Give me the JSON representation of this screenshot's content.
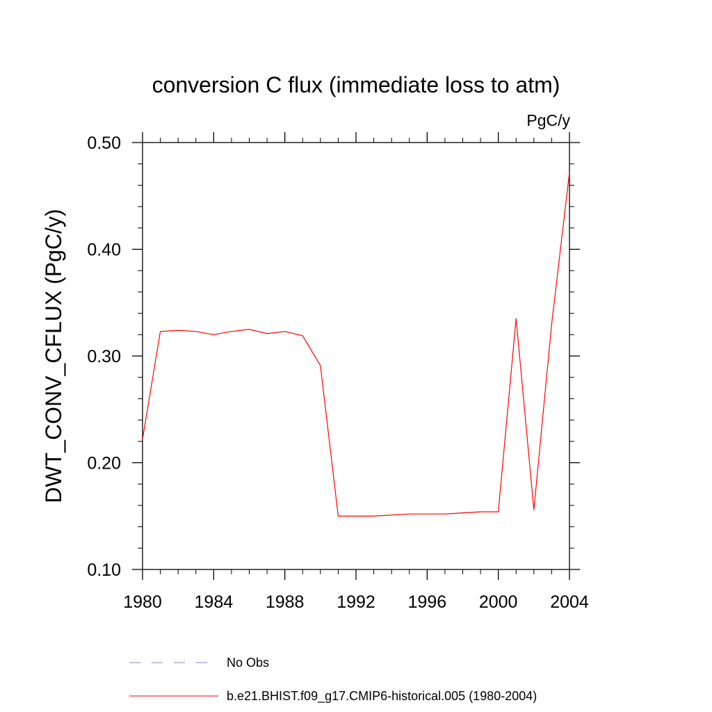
{
  "chart_data": {
    "type": "line",
    "title": "conversion C flux (immediate loss to atm)",
    "units_label": "PgC/y",
    "xlabel": "",
    "ylabel": "DWT_CONV_CFLUX  (PgC/y)",
    "xlim": [
      1980,
      2004
    ],
    "ylim": [
      0.1,
      0.5
    ],
    "x_ticks": [
      1980,
      1984,
      1988,
      1992,
      1996,
      2000,
      2004
    ],
    "x_tick_labels": [
      "1980",
      "1984",
      "1988",
      "1992",
      "1996",
      "2000",
      "2004"
    ],
    "y_ticks": [
      0.1,
      0.2,
      0.3,
      0.4,
      0.5
    ],
    "y_tick_labels": [
      "0.10",
      "0.20",
      "0.30",
      "0.40",
      "0.50"
    ],
    "grid": false,
    "legend_position": "bottom",
    "series": [
      {
        "name": "b.e21.BHIST.f09_g17.CMIP6-historical.005 (1980-2004)",
        "color": "#ff0000",
        "dash": "solid",
        "x": [
          1980,
          1981,
          1982,
          1983,
          1984,
          1985,
          1986,
          1987,
          1988,
          1989,
          1990,
          1991,
          1992,
          1993,
          1994,
          1995,
          1996,
          1997,
          1998,
          1999,
          2000,
          2001,
          2002,
          2003,
          2004
        ],
        "values": [
          0.222,
          0.323,
          0.324,
          0.323,
          0.32,
          0.323,
          0.325,
          0.321,
          0.323,
          0.319,
          0.291,
          0.15,
          0.15,
          0.15,
          0.151,
          0.152,
          0.152,
          0.152,
          0.153,
          0.154,
          0.154,
          0.335,
          0.156,
          0.33,
          0.472
        ]
      }
    ],
    "legend": [
      {
        "label": "No Obs",
        "color": "#8080c8",
        "dash": "dashed"
      },
      {
        "label": "b.e21.BHIST.f09_g17.CMIP6-historical.005 (1980-2004)",
        "color": "#ff0000",
        "dash": "solid"
      }
    ]
  }
}
